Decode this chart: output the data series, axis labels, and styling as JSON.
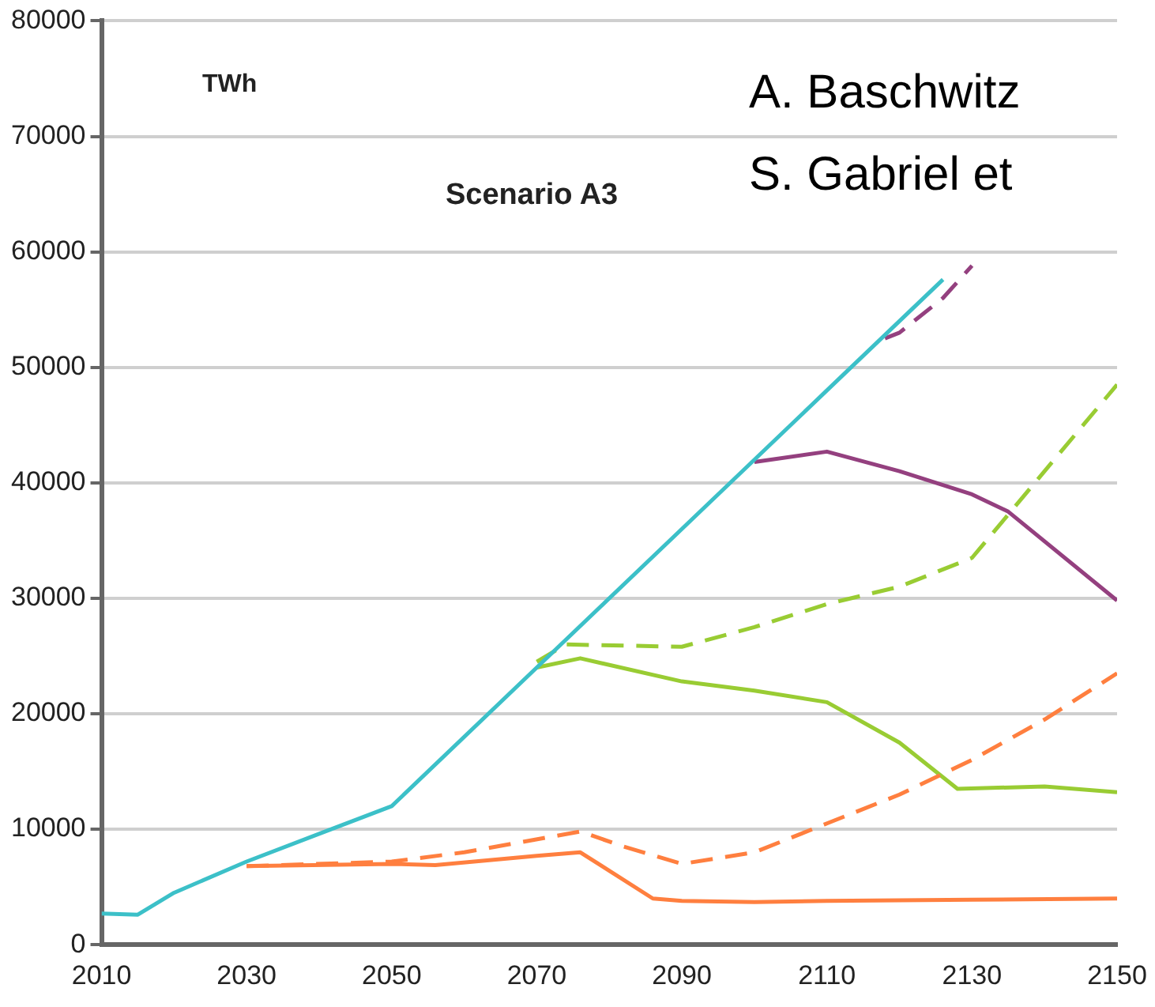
{
  "chart_data": {
    "type": "line",
    "annotations": [
      "TWh",
      "Scenario A3",
      "A. Baschwitz",
      "S. Gabriel et"
    ],
    "xlim": [
      2010,
      2150
    ],
    "xticks": [
      2010,
      2030,
      2050,
      2070,
      2090,
      2110,
      2130,
      2150
    ],
    "ylim": [
      0,
      80000
    ],
    "yticks": [
      0,
      10000,
      20000,
      30000,
      40000,
      50000,
      60000,
      70000,
      80000
    ],
    "grid": "y",
    "legend": false,
    "marker": "none",
    "series": [
      {
        "color": "#3cc0c8",
        "line_style": "solid",
        "x": [
          2010,
          2015,
          2020,
          2030,
          2040,
          2050,
          2070,
          2090,
          2110,
          2126
        ],
        "values": [
          2700,
          2600,
          4500,
          7200,
          9600,
          12000,
          24000,
          36000,
          48000,
          57600
        ]
      },
      {
        "color": "#ff7f3f",
        "line_style": "solid",
        "x": [
          2030,
          2050,
          2056,
          2070,
          2076,
          2086,
          2090,
          2100,
          2110,
          2130,
          2150
        ],
        "values": [
          6800,
          7000,
          6900,
          7700,
          8000,
          4000,
          3800,
          3700,
          3800,
          3900,
          4000
        ]
      },
      {
        "color": "#ff7f3f",
        "line_style": "dashed",
        "x": [
          2030,
          2050,
          2060,
          2076,
          2082,
          2090,
          2100,
          2110,
          2120,
          2130,
          2140,
          2150
        ],
        "values": [
          6800,
          7200,
          8000,
          9800,
          8500,
          7000,
          8000,
          10500,
          13000,
          16000,
          19500,
          23500
        ]
      },
      {
        "color": "#99cc33",
        "line_style": "solid",
        "x": [
          2070,
          2076,
          2090,
          2100,
          2110,
          2120,
          2128,
          2140,
          2150
        ],
        "values": [
          24000,
          24800,
          22800,
          22000,
          21000,
          17500,
          13500,
          13700,
          13200
        ]
      },
      {
        "color": "#99cc33",
        "line_style": "dashed",
        "x": [
          2070,
          2074,
          2090,
          2100,
          2110,
          2120,
          2130,
          2140,
          2150
        ],
        "values": [
          24500,
          26000,
          25800,
          27500,
          29500,
          31000,
          33500,
          41000,
          48500
        ]
      },
      {
        "color": "#94407f",
        "line_style": "solid",
        "x": [
          2100,
          2110,
          2120,
          2130,
          2135,
          2150
        ],
        "values": [
          41800,
          42700,
          41000,
          39000,
          37500,
          29800
        ]
      },
      {
        "color": "#94407f",
        "line_style": "dashed",
        "x": [
          2118,
          2120,
          2126,
          2130
        ],
        "values": [
          52500,
          53000,
          56000,
          58800
        ]
      }
    ]
  }
}
